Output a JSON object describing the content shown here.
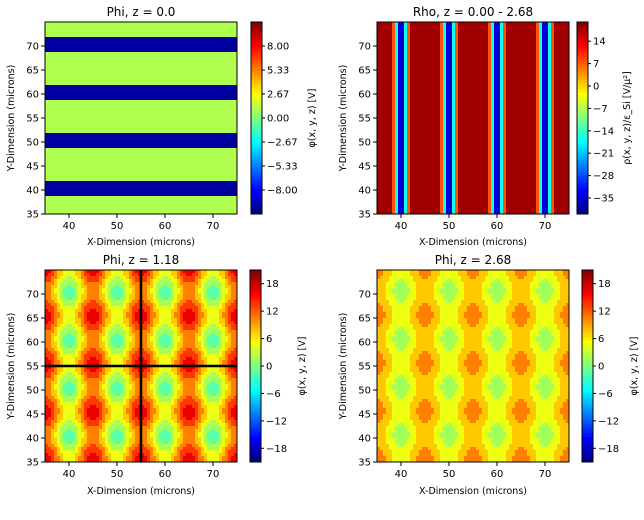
{
  "chart_data": [
    {
      "type": "heatmap",
      "id": "p1",
      "title": "Phi, z = 0.0",
      "xlabel": "X-Dimension (microns)",
      "ylabel": "Y-Dimension (microns)",
      "xlim": [
        35,
        75
      ],
      "ylim": [
        35,
        75
      ],
      "xticks": [
        "40",
        "50",
        "60",
        "70"
      ],
      "yticks": [
        "35",
        "40",
        "45",
        "50",
        "55",
        "60",
        "65",
        "70"
      ],
      "field": "stripes_y",
      "stripe_centers": [
        40.5,
        50.5,
        60.5,
        70.5
      ],
      "stripe_halfwidth": 1.6,
      "stripe_value": -10.0,
      "background_value": 1.0,
      "clim": [
        -10.67,
        10.67
      ],
      "colorbar": {
        "label": "φ(x, y, z) [V]",
        "ticks": [
          "8.00",
          "5.33",
          "2.67",
          "0.00",
          "−2.67",
          "−5.33",
          "−8.00"
        ],
        "tick_values": [
          8.0,
          5.33,
          2.67,
          0.0,
          -2.67,
          -5.33,
          -8.0
        ],
        "range": [
          -10.67,
          10.67
        ]
      },
      "crosshair": null
    },
    {
      "type": "heatmap",
      "id": "p2",
      "title": "Rho, z = 0.00 - 2.68",
      "xlabel": "X-Dimension (microns)",
      "ylabel": "Y-Dimension (microns)",
      "xlim": [
        35,
        75
      ],
      "ylim": [
        35,
        75
      ],
      "xticks": [
        "40",
        "50",
        "60",
        "70"
      ],
      "yticks": [
        "35",
        "40",
        "45",
        "50",
        "55",
        "60",
        "65",
        "70"
      ],
      "field": "stripes_x",
      "stripe_centers": [
        40,
        50,
        60,
        70
      ],
      "stripe_halfwidth": 1.8,
      "stripe_value": -40.0,
      "background_value": 18.0,
      "clim": [
        -40,
        20
      ],
      "colorbar": {
        "label": "ρ(x, y, z)/ε_Si [V/μ²]",
        "ticks": [
          "14",
          "7",
          "0",
          "−7",
          "−14",
          "−21",
          "−28",
          "−35"
        ],
        "tick_values": [
          14,
          7,
          0,
          -7,
          -14,
          -21,
          -28,
          -35
        ],
        "range": [
          -40,
          20
        ]
      },
      "crosshair": null
    },
    {
      "type": "heatmap",
      "id": "p3",
      "title": "Phi, z = 1.18",
      "xlabel": "X-Dimension (microns)",
      "ylabel": "Y-Dimension (microns)",
      "xlim": [
        35,
        75
      ],
      "ylim": [
        35,
        75
      ],
      "xticks": [
        "40",
        "50",
        "60",
        "70"
      ],
      "yticks": [
        "35",
        "40",
        "45",
        "50",
        "55",
        "60",
        "65",
        "70"
      ],
      "field": "grid",
      "base": 7.5,
      "amp_x": 6.0,
      "amp_y": 3.0,
      "period_x": 10,
      "phase_x": 45,
      "period_y": 10,
      "phase_y": 45.5,
      "levels": 14,
      "clim": [
        -21,
        21
      ],
      "colorbar": {
        "label": "φ(x, y, z) [V]",
        "ticks": [
          "18",
          "12",
          "6",
          "0",
          "−6",
          "−12",
          "−18"
        ],
        "tick_values": [
          18,
          12,
          6,
          0,
          -6,
          -12,
          -18
        ],
        "range": [
          -21,
          21
        ]
      },
      "crosshair": {
        "x": 55,
        "y": 55
      }
    },
    {
      "type": "heatmap",
      "id": "p4",
      "title": "Phi, z = 2.68",
      "xlabel": "X-Dimension (microns)",
      "ylabel": "Y-Dimension (microns)",
      "xlim": [
        35,
        75
      ],
      "ylim": [
        35,
        75
      ],
      "xticks": [
        "40",
        "50",
        "60",
        "70"
      ],
      "yticks": [
        "35",
        "40",
        "45",
        "50",
        "55",
        "60",
        "65",
        "70"
      ],
      "field": "grid",
      "base": 6.0,
      "amp_x": 3.0,
      "amp_y": 1.5,
      "period_x": 10,
      "phase_x": 45,
      "period_y": 10,
      "phase_y": 45.5,
      "levels": 14,
      "clim": [
        -21,
        21
      ],
      "colorbar": {
        "label": "φ(x, y, z) [V]",
        "ticks": [
          "18",
          "12",
          "6",
          "0",
          "−6",
          "−12",
          "−18"
        ],
        "tick_values": [
          18,
          12,
          6,
          0,
          -6,
          -12,
          -18
        ],
        "range": [
          -21,
          21
        ]
      },
      "crosshair": null
    }
  ]
}
